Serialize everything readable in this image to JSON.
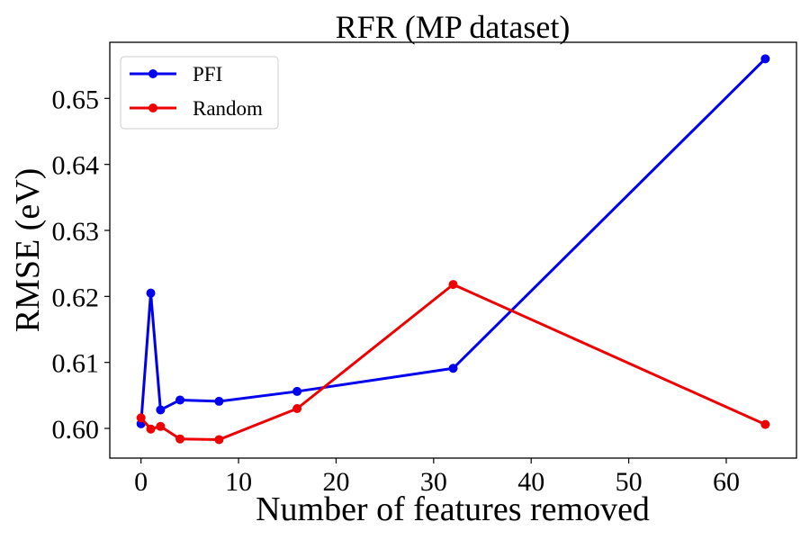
{
  "chart_data": {
    "type": "line",
    "title": "RFR (MP dataset)",
    "xlabel": "Number of features removed",
    "ylabel": "RMSE (eV)",
    "xlim": [
      -3.2,
      67.2
    ],
    "ylim": [
      0.5955,
      0.6585
    ],
    "xticks": [
      0,
      10,
      20,
      30,
      40,
      50,
      60
    ],
    "xtick_labels": [
      "0",
      "10",
      "20",
      "30",
      "40",
      "50",
      "60"
    ],
    "yticks": [
      0.6,
      0.61,
      0.62,
      0.63,
      0.64,
      0.65
    ],
    "ytick_labels": [
      "0.60",
      "0.61",
      "0.62",
      "0.63",
      "0.64",
      "0.65"
    ],
    "grid": false,
    "legend_position": "top-left",
    "x": [
      0,
      1,
      2,
      4,
      8,
      16,
      32,
      64
    ],
    "series": [
      {
        "name": "PFI",
        "color": "#0000ee",
        "values": [
          0.6007,
          0.6205,
          0.6028,
          0.6043,
          0.6041,
          0.6056,
          0.6091,
          0.656
        ]
      },
      {
        "name": "Random",
        "color": "#ee0000",
        "values": [
          0.6016,
          0.5999,
          0.6003,
          0.5984,
          0.5983,
          0.603,
          0.6218,
          0.6006
        ]
      }
    ]
  }
}
